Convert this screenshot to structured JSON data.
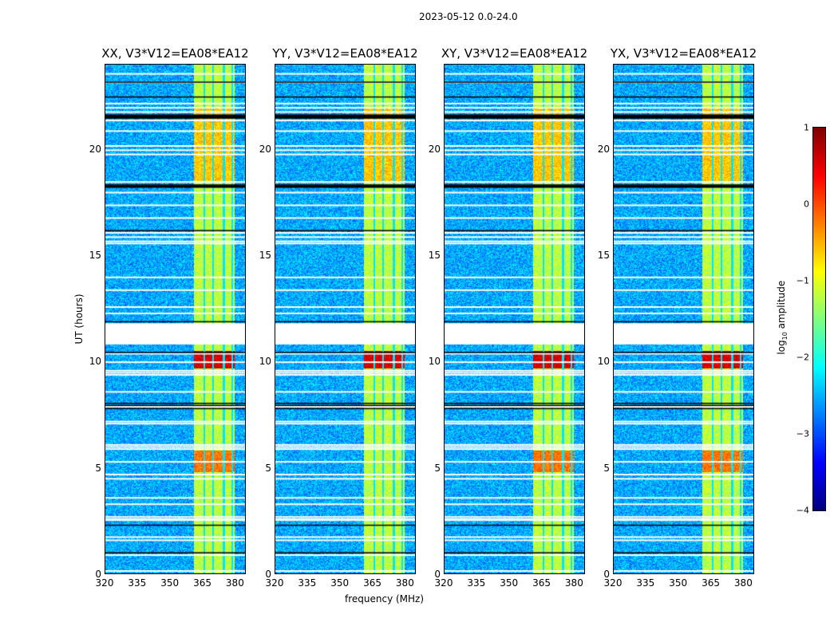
{
  "suptitle": "2023-05-12 0.0-24.0",
  "chart_data": {
    "type": "heatmap",
    "panels": [
      {
        "title": "XX, V3*V12=EA08*EA12"
      },
      {
        "title": "YY, V3*V12=EA08*EA12"
      },
      {
        "title": "XY, V3*V12=EA08*EA12"
      },
      {
        "title": "YX, V3*V12=EA08*EA12"
      }
    ],
    "xlabel": "frequency (MHz)",
    "ylabel": "UT (hours)",
    "xlim": [
      320,
      385
    ],
    "ylim": [
      0,
      24
    ],
    "xticks": [
      "320",
      "335",
      "350",
      "365",
      "380"
    ],
    "yticks": [
      "0",
      "5",
      "10",
      "15",
      "20"
    ],
    "active_band_mhz": [
      361,
      381
    ],
    "flagged_hours": [
      [
        10.8,
        11.8
      ]
    ],
    "colorbar": {
      "label": "log10 amplitude",
      "label_main": "log",
      "label_sub": "10",
      "label_rest": " amplitude",
      "range": [
        -4,
        1
      ],
      "ticks": [
        "1",
        "0",
        "−1",
        "−2",
        "−3",
        "−4"
      ],
      "colormap": "jet"
    }
  }
}
